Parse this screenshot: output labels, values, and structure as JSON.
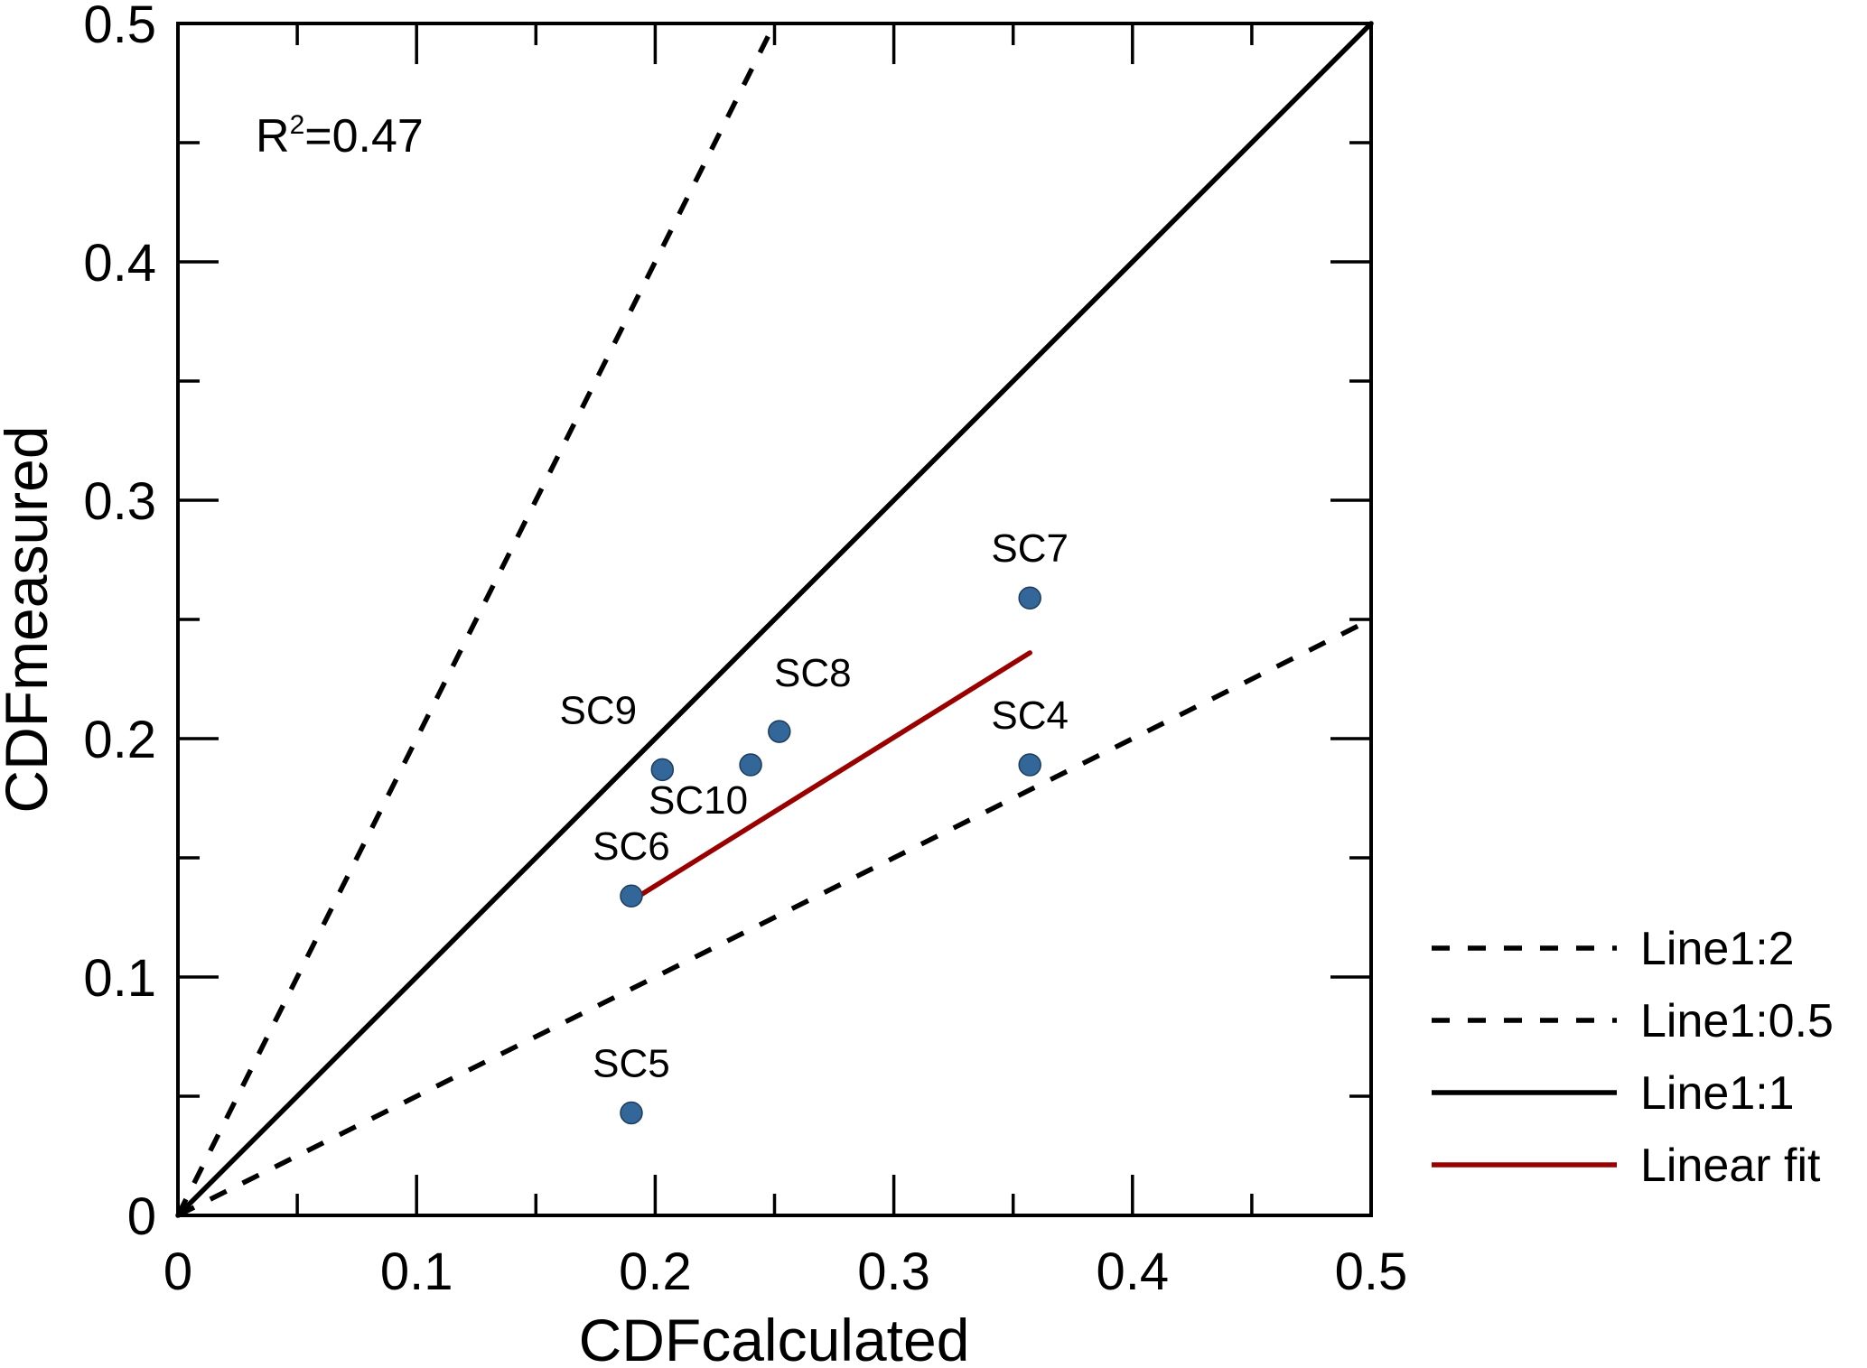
{
  "chart_data": {
    "type": "scatter",
    "xlabel": "CDFcalculated",
    "ylabel": "CDFmeasured",
    "xlim": [
      0,
      0.5
    ],
    "ylim": [
      0,
      0.5
    ],
    "x_ticks": [
      "0",
      "0.1",
      "0.2",
      "0.3",
      "0.4",
      "0.5"
    ],
    "y_ticks": [
      "0",
      "0.1",
      "0.2",
      "0.3",
      "0.4",
      "0.5"
    ],
    "grid": false,
    "annotation": {
      "prefix": "R",
      "sup": "2",
      "suffix": "=0.47"
    },
    "point_color": "#336699",
    "points": [
      {
        "label": "SC4",
        "x": 0.357,
        "y": 0.189
      },
      {
        "label": "SC5",
        "x": 0.19,
        "y": 0.043
      },
      {
        "label": "SC6",
        "x": 0.19,
        "y": 0.134
      },
      {
        "label": "SC7",
        "x": 0.357,
        "y": 0.259
      },
      {
        "label": "SC8",
        "x": 0.252,
        "y": 0.203
      },
      {
        "label": "SC9",
        "x": 0.203,
        "y": 0.187
      },
      {
        "label": "SC10",
        "x": 0.24,
        "y": 0.189
      }
    ],
    "lines": [
      {
        "name": "Line1:2",
        "style": "dashed",
        "color": "#000000",
        "slope": 2
      },
      {
        "name": "Line1:0.5",
        "style": "dashed",
        "color": "#000000",
        "slope": 0.5
      },
      {
        "name": "Line1:1",
        "style": "solid",
        "color": "#000000",
        "slope": 1
      },
      {
        "name": "Linear fit",
        "style": "solid",
        "color": "#990000",
        "x": [
          0.19,
          0.357
        ],
        "y": [
          0.132,
          0.236
        ]
      }
    ],
    "legend_position": "right"
  }
}
